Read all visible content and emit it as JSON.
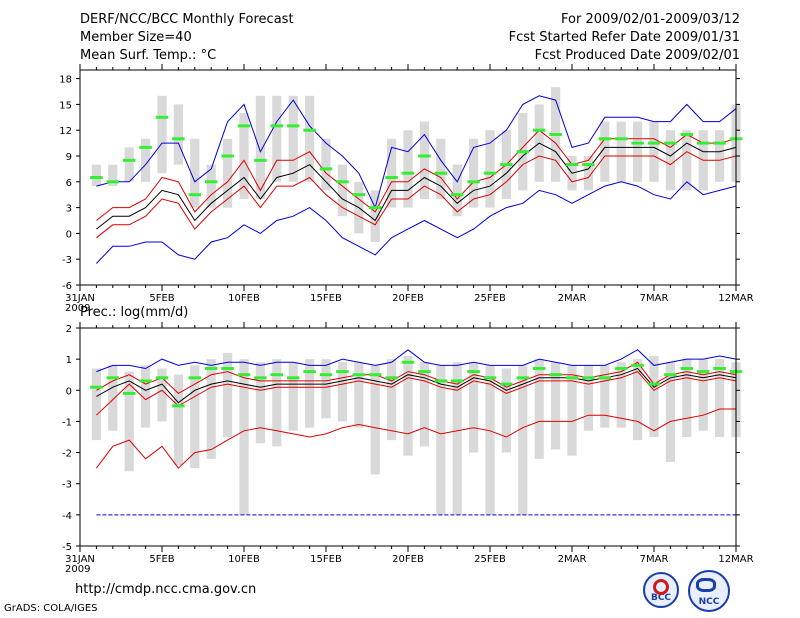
{
  "header": {
    "title": "DERF/NCC/BCC Monthly Forecast",
    "member_size": "Member Size=40",
    "variable": "Mean Surf. Temp.: °C",
    "period": "For 2009/02/01-2009/03/12",
    "started": "Fcst Started Refer Date 2009/01/31",
    "produced": "Fcst Produced Date 2009/02/01"
  },
  "footer": {
    "url": "http://cmdp.ncc.cma.gov.cn",
    "credit": "GrADS: COLA/IGES",
    "logo_bcc": "BCC",
    "logo_ncc": "NCC"
  },
  "colors": {
    "box": "#d9d9d9",
    "median": "#33ee33",
    "max_line": "#0000dd",
    "spread_line": "#dd0000",
    "mean_line": "#000000"
  },
  "chart_data": [
    {
      "type": "line",
      "title": "Mean Surf. Temp.: °C",
      "x_tick_labels": [
        "31JAN\n2009",
        "5FEB",
        "10FEB",
        "15FEB",
        "20FEB",
        "25FEB",
        "2MAR",
        "7MAR",
        "12MAR"
      ],
      "x_tick_days": [
        0,
        5,
        10,
        15,
        20,
        25,
        30,
        35,
        40
      ],
      "ylim": [
        -6,
        19
      ],
      "y_ticks": [
        -6,
        -3,
        0,
        3,
        6,
        9,
        12,
        15,
        18
      ],
      "y_tick_labels": [
        "-6",
        "-3",
        "0",
        "3",
        "6",
        "9",
        "12",
        "15",
        "18"
      ],
      "days": [
        1,
        2,
        3,
        4,
        5,
        6,
        7,
        8,
        9,
        10,
        11,
        12,
        13,
        14,
        15,
        16,
        17,
        18,
        19,
        20,
        21,
        22,
        23,
        24,
        25,
        26,
        27,
        28,
        29,
        30,
        31,
        32,
        33,
        34,
        35,
        36,
        37,
        38,
        39,
        40
      ],
      "box_low": [
        5.5,
        5.5,
        6,
        6,
        7,
        8,
        3,
        3,
        3,
        4,
        4,
        6,
        6,
        6,
        5,
        2,
        0,
        -1,
        3,
        3,
        4,
        4,
        2,
        3,
        3,
        4,
        5,
        6,
        6,
        5,
        5,
        6,
        6,
        6,
        6,
        5,
        5,
        5,
        6,
        6
      ],
      "box_high": [
        8,
        8,
        10,
        11,
        16,
        15,
        11,
        8,
        11,
        14,
        16,
        16,
        16,
        16,
        11,
        8,
        6,
        5,
        11,
        12,
        13,
        11,
        8,
        11,
        12,
        12,
        14,
        15,
        17,
        9,
        9,
        13,
        13,
        13,
        13,
        12,
        12,
        12,
        12,
        15
      ],
      "median": [
        6.5,
        6,
        8.5,
        10,
        13.5,
        11,
        4.5,
        6,
        9,
        12.5,
        8.5,
        12.5,
        12.5,
        12,
        7.5,
        6,
        4.5,
        3,
        6.5,
        7,
        9,
        7,
        4.5,
        6,
        7,
        8,
        9.5,
        12,
        11.5,
        8,
        8,
        11,
        11,
        10.5,
        10.5,
        10.5,
        11.5,
        10.5,
        10.5,
        11
      ],
      "series": [
        {
          "name": "Maximum",
          "color": "#0000dd",
          "values": [
            5.5,
            6,
            6,
            8,
            10.5,
            10.5,
            6,
            7.5,
            13,
            15,
            9.5,
            13,
            15.5,
            12.5,
            10.5,
            9,
            7,
            3,
            10,
            9.5,
            11.5,
            8.5,
            6,
            10,
            10.5,
            12,
            15,
            16,
            15.5,
            10,
            10.5,
            13.5,
            13.5,
            13.5,
            13,
            13,
            15,
            13,
            13,
            14.5
          ]
        },
        {
          "name": "Mean + spread",
          "color": "#dd0000",
          "values": [
            1.5,
            3,
            3,
            4,
            6.5,
            6,
            2.5,
            4.5,
            6,
            8.5,
            5,
            8.5,
            8.5,
            9.5,
            7,
            5.5,
            4,
            2.5,
            6,
            6,
            7.5,
            6.5,
            4,
            6,
            6.5,
            8,
            10,
            12,
            10.5,
            8,
            8.5,
            11,
            11,
            11,
            11,
            10,
            11.5,
            10.5,
            10.5,
            11
          ]
        },
        {
          "name": "Mean",
          "color": "#000000",
          "values": [
            0.5,
            2,
            2,
            3,
            5,
            4.5,
            1.5,
            3.5,
            5,
            6.5,
            4,
            6.5,
            7,
            8,
            6,
            4,
            3,
            1.5,
            5,
            5,
            6.5,
            5.5,
            3.5,
            5,
            5.5,
            7,
            9,
            10.5,
            9.5,
            7,
            7.5,
            10,
            10,
            10,
            10,
            9,
            10.5,
            9.5,
            9.5,
            10
          ]
        },
        {
          "name": "Mean - spread",
          "color": "#dd0000",
          "values": [
            -0.5,
            1,
            1,
            2,
            4,
            3.5,
            0.5,
            2.5,
            4,
            5.5,
            3,
            5.5,
            5.5,
            6.5,
            4.5,
            3,
            2,
            1,
            4,
            4,
            5.5,
            4.5,
            2.5,
            4,
            4.5,
            6,
            8,
            9,
            8.5,
            6,
            6.5,
            9,
            9,
            9,
            9,
            8,
            9.5,
            8.5,
            8.5,
            9
          ]
        },
        {
          "name": "Minimum",
          "color": "#0000dd",
          "values": [
            -3.5,
            -1.5,
            -1.5,
            -1,
            -1,
            -2.5,
            -3,
            -1,
            -0.5,
            1,
            0,
            1.5,
            2,
            3,
            1.5,
            -0.5,
            -1.5,
            -2.5,
            -0.5,
            0.5,
            1.5,
            0.5,
            -0.5,
            0.5,
            2,
            3,
            3.5,
            5,
            4.5,
            3.5,
            4.5,
            5.5,
            6,
            5.5,
            4.5,
            4,
            6,
            4.5,
            5,
            5.5
          ]
        }
      ]
    },
    {
      "type": "line",
      "title": "Prec.: log(mm/d)",
      "x_tick_labels": [
        "31JAN\n2009",
        "5FEB",
        "10FEB",
        "15FEB",
        "20FEB",
        "25FEB",
        "2MAR",
        "7MAR",
        "12MAR"
      ],
      "x_tick_days": [
        0,
        5,
        10,
        15,
        20,
        25,
        30,
        35,
        40
      ],
      "ylim": [
        -5,
        2
      ],
      "y_ticks": [
        -5,
        -4,
        -3,
        -2,
        -1,
        0,
        1,
        2
      ],
      "y_tick_labels": [
        "-5",
        "-4",
        "-3",
        "-2",
        "-1",
        "0",
        "1",
        "2"
      ],
      "days": [
        1,
        2,
        3,
        4,
        5,
        6,
        7,
        8,
        9,
        10,
        11,
        12,
        13,
        14,
        15,
        16,
        17,
        18,
        19,
        20,
        21,
        22,
        23,
        24,
        25,
        26,
        27,
        28,
        29,
        30,
        31,
        32,
        33,
        34,
        35,
        36,
        37,
        38,
        39,
        40
      ],
      "box_low": [
        -1.6,
        -1.3,
        -2.6,
        -1.2,
        -1.0,
        -2.4,
        -2.5,
        -2.2,
        -1.5,
        -4,
        -1.7,
        -1.8,
        -1.3,
        -1.2,
        -0.9,
        -1.0,
        -1.2,
        -2.7,
        -1.6,
        -2.1,
        -1.8,
        -4,
        -4,
        -2,
        -4,
        -2.0,
        -4,
        -2.2,
        -1.9,
        -2.1,
        -1.3,
        -1.2,
        -1.2,
        -1.6,
        -1.5,
        -2.3,
        -1.5,
        -1.3,
        -1.5,
        -1.5
      ],
      "box_high": [
        0.7,
        0.8,
        0.6,
        0.8,
        0.7,
        0.5,
        0.8,
        1.0,
        1.2,
        1.0,
        0.9,
        1.0,
        0.9,
        1.0,
        1.0,
        0.9,
        0.9,
        0.8,
        1.0,
        1.1,
        0.9,
        0.8,
        0.9,
        0.9,
        0.8,
        0.7,
        0.8,
        1.0,
        0.9,
        0.8,
        0.8,
        0.8,
        0.9,
        1.0,
        1.1,
        0.9,
        1.0,
        1.0,
        1.0,
        0.9
      ],
      "median": [
        0.1,
        0.4,
        -0.1,
        0.3,
        0.4,
        -0.5,
        0.4,
        0.7,
        0.7,
        0.5,
        0.4,
        0.5,
        0.4,
        0.6,
        0.5,
        0.6,
        0.5,
        0.5,
        0.4,
        0.9,
        0.6,
        0.3,
        0.3,
        0.6,
        0.4,
        0.2,
        0.4,
        0.7,
        0.5,
        0.4,
        0.4,
        0.4,
        0.7,
        0.8,
        0.2,
        0.5,
        0.7,
        0.6,
        0.7,
        0.6
      ],
      "series": [
        {
          "name": "Maximum",
          "color": "#0000dd",
          "values": [
            0.6,
            0.8,
            0.8,
            0.7,
            1.0,
            0.8,
            0.9,
            0.8,
            0.9,
            0.9,
            0.8,
            0.9,
            0.9,
            0.8,
            0.8,
            1.0,
            0.9,
            0.8,
            0.9,
            1.3,
            0.9,
            0.8,
            0.8,
            0.9,
            0.8,
            0.8,
            0.8,
            1.0,
            0.9,
            0.8,
            0.8,
            0.8,
            1.0,
            1.3,
            0.8,
            0.9,
            1.0,
            1.0,
            1.1,
            1.0
          ]
        },
        {
          "name": "Mean + spread",
          "color": "#dd0000",
          "values": [
            0.0,
            0.3,
            0.5,
            0.2,
            0.4,
            -0.1,
            0.2,
            0.5,
            0.6,
            0.4,
            0.3,
            0.3,
            0.3,
            0.3,
            0.3,
            0.4,
            0.5,
            0.5,
            0.3,
            0.6,
            0.5,
            0.3,
            0.2,
            0.5,
            0.4,
            0.1,
            0.3,
            0.5,
            0.5,
            0.5,
            0.4,
            0.5,
            0.6,
            0.9,
            0.2,
            0.5,
            0.6,
            0.5,
            0.6,
            0.5
          ]
        },
        {
          "name": "Mean",
          "color": "#000000",
          "values": [
            -0.2,
            0.1,
            0.3,
            0.0,
            0.2,
            -0.4,
            0.0,
            0.2,
            0.3,
            0.2,
            0.1,
            0.2,
            0.2,
            0.2,
            0.2,
            0.3,
            0.4,
            0.3,
            0.2,
            0.5,
            0.4,
            0.2,
            0.1,
            0.4,
            0.3,
            0.0,
            0.2,
            0.4,
            0.4,
            0.4,
            0.3,
            0.4,
            0.5,
            0.7,
            0.1,
            0.4,
            0.5,
            0.4,
            0.5,
            0.4
          ]
        },
        {
          "name": "Mean - spread",
          "color": "#dd0000",
          "values": [
            -0.8,
            -0.3,
            0.2,
            -0.3,
            0.0,
            -0.5,
            -0.2,
            0.1,
            0.2,
            0.1,
            0.0,
            0.1,
            0.1,
            0.1,
            0.1,
            0.2,
            0.3,
            0.2,
            0.1,
            0.4,
            0.3,
            0.1,
            0.0,
            0.3,
            0.2,
            -0.1,
            0.1,
            0.3,
            0.3,
            0.3,
            0.2,
            0.3,
            0.4,
            0.6,
            0.0,
            0.3,
            0.4,
            0.3,
            0.4,
            0.3
          ]
        },
        {
          "name": "Minimum",
          "color": "#dd0000",
          "values": [
            -2.5,
            -1.8,
            -1.6,
            -2.2,
            -1.8,
            -2.5,
            -2.0,
            -1.9,
            -1.6,
            -1.3,
            -1.2,
            -1.3,
            -1.4,
            -1.5,
            -1.4,
            -1.2,
            -1.1,
            -1.2,
            -1.3,
            -1.4,
            -1.2,
            -1.4,
            -1.3,
            -1.2,
            -1.3,
            -1.5,
            -1.2,
            -1.0,
            -1.0,
            -1.0,
            -0.8,
            -0.8,
            -0.9,
            -1.0,
            -1.3,
            -1.0,
            -0.9,
            -0.8,
            -0.6,
            -0.6
          ]
        },
        {
          "name": "Lower bound",
          "color": "#0000dd",
          "values": [
            -4,
            -4,
            -4,
            -4,
            -4,
            -4,
            -4,
            -4,
            -4,
            -4,
            -4,
            -4,
            -4,
            -4,
            -4,
            -4,
            -4,
            -4,
            -4,
            -4,
            -4,
            -4,
            -4,
            -4,
            -4,
            -4,
            -4,
            -4,
            -4,
            -4,
            -4,
            -4,
            -4,
            -4,
            -4,
            -4,
            -4,
            -4,
            -4,
            -4
          ]
        }
      ]
    }
  ]
}
